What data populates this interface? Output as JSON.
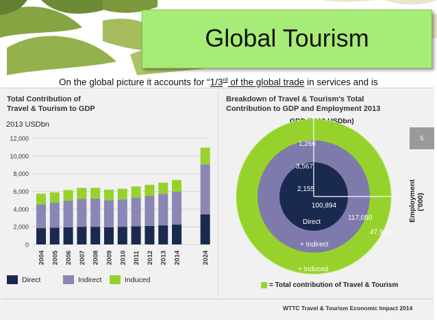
{
  "slide": {
    "title": "Global Tourism",
    "subtitle_pre": "On the global picture it accounts for “",
    "subtitle_ul1": "1/3",
    "subtitle_sup": "rd",
    "subtitle_ul2": " of the global trade",
    "subtitle_post": " in services and is",
    "page_number": "5",
    "footer": "WTTC Travel & Tourism Economic Impact 2014"
  },
  "left_chart": {
    "title_line1": "Total Contribution of",
    "title_line2": "Travel & Tourism to GDP",
    "unit": "2013 USDbn",
    "legend": [
      {
        "label": "Direct",
        "color": "#1a2a4f"
      },
      {
        "label": "Indirect",
        "color": "#8b87b4"
      },
      {
        "label": "Induced",
        "color": "#97d22c"
      }
    ]
  },
  "right_chart": {
    "title_line1": "Breakdown of Travel & Tourism's Total",
    "title_line2": "Contribution to GDP and Employment 2013",
    "gdp_label": "GDP (2013 USDbn)",
    "employment_label": "Employment",
    "employment_unit": "('000)",
    "rings_legend": "= Total contribution of Travel & Tourism",
    "labels": {
      "gdp_direct": "2,155",
      "gdp_indirect": "3,567",
      "gdp_induced": "1,266",
      "emp_direct": "100,894",
      "emp_indirect": "117,050",
      "emp_induced": "47,910",
      "direct": "Direct",
      "indirect": "+ Indirect",
      "induced": "+ Induced"
    }
  },
  "chart_data": [
    {
      "type": "bar",
      "stacked": true,
      "title": "Total Contribution of Travel & Tourism to GDP",
      "ylabel": "2013 USDbn",
      "categories": [
        "2004",
        "2005",
        "2006",
        "2007",
        "2008",
        "2009",
        "2010",
        "2011",
        "2012",
        "2013",
        "2014",
        "2024"
      ],
      "series": [
        {
          "name": "Direct",
          "values": [
            1850,
            1900,
            1950,
            2000,
            2000,
            1950,
            2000,
            2050,
            2100,
            2155,
            2250,
            3400
          ]
        },
        {
          "name": "Indirect",
          "values": [
            2700,
            2850,
            3000,
            3150,
            3200,
            3050,
            3100,
            3250,
            3400,
            3567,
            3700,
            5650
          ]
        },
        {
          "name": "Induced",
          "values": [
            1200,
            1150,
            1200,
            1250,
            1200,
            1200,
            1200,
            1250,
            1250,
            1266,
            1350,
            1900
          ]
        }
      ],
      "ylim": [
        0,
        12000
      ],
      "yticks": [
        "0",
        "2,000",
        "4,000",
        "6,000",
        "8,000",
        "10,000",
        "12,000"
      ],
      "grid": true,
      "legend_position": "bottom"
    },
    {
      "type": "pie",
      "title": "Breakdown of Travel & Tourism's Total Contribution to GDP and Employment 2013",
      "rings": [
        "Direct",
        "+ Indirect",
        "+ Induced"
      ],
      "gdp_usdbn": {
        "Direct": 2155,
        "Indirect": 3567,
        "Induced": 1266
      },
      "employment_thousands": {
        "Direct": 100894,
        "Indirect": 117050,
        "Induced": 47910
      }
    }
  ],
  "colors": {
    "direct": "#1a2a4f",
    "indirect": "#8b87b4",
    "induced": "#97d22c",
    "title_box": "#a7ec76"
  }
}
